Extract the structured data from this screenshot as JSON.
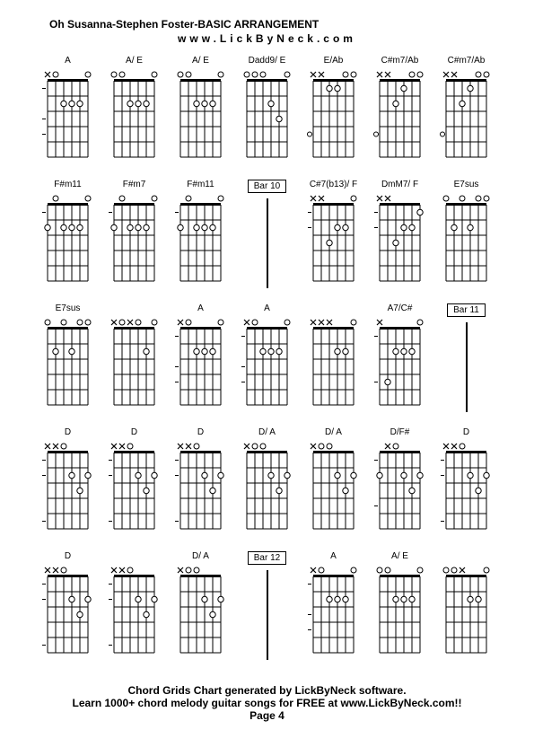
{
  "title": "Oh Susanna-Stephen Foster-BASIC ARRANGEMENT",
  "subtitle": "www.LickByNeck.com",
  "footer_line1": "Chord Grids Chart generated by LickByNeck software.",
  "footer_line2": "Learn 1000+ chord melody guitar songs for FREE at www.LickByNeck.com!!",
  "footer_line3": "Page 4",
  "colors": {
    "background": "#ffffff",
    "stroke": "#000000",
    "dot_fill": "#ffffff",
    "dot_stroke": "#000000"
  },
  "diagram": {
    "strings": 6,
    "frets": 5,
    "width": 46,
    "height": 88,
    "string_gap": 9,
    "fret_gap": 17,
    "dot_radius": 3.2,
    "marker_size": 7
  },
  "cells": [
    {
      "type": "chord",
      "label": "A",
      "markers": [
        "x",
        "o",
        null,
        null,
        null,
        "o"
      ],
      "dots": [
        [
          3,
          2
        ],
        [
          4,
          2
        ],
        [
          5,
          2
        ]
      ],
      "dashes": [
        0,
        2,
        3
      ]
    },
    {
      "type": "chord",
      "label": "A/ E",
      "markers": [
        "o",
        "o",
        null,
        null,
        null,
        "o"
      ],
      "dots": [
        [
          3,
          2
        ],
        [
          4,
          2
        ],
        [
          5,
          2
        ]
      ]
    },
    {
      "type": "chord",
      "label": "A/ E",
      "markers": [
        "o",
        "o",
        null,
        null,
        null,
        "o"
      ],
      "dots": [
        [
          3,
          2
        ],
        [
          4,
          2
        ],
        [
          5,
          2
        ]
      ]
    },
    {
      "type": "chord",
      "label": "Dadd9/ E",
      "markers": [
        "o",
        "o",
        "o",
        null,
        null,
        "o"
      ],
      "dots": [
        [
          4,
          2
        ],
        [
          5,
          3
        ]
      ]
    },
    {
      "type": "chord",
      "label": "E/Ab",
      "markers": [
        "x",
        "x",
        null,
        null,
        "o",
        "o"
      ],
      "dots": [
        [
          3,
          1
        ],
        [
          4,
          1
        ]
      ],
      "sideDot": 4
    },
    {
      "type": "chord",
      "label": "C#m7/Ab",
      "markers": [
        "x",
        "x",
        null,
        null,
        "o",
        "o"
      ],
      "dots": [
        [
          3,
          2
        ],
        [
          4,
          1
        ]
      ],
      "sideDot": 4
    },
    {
      "type": "chord",
      "label": "C#m7/Ab",
      "markers": [
        "x",
        "x",
        null,
        null,
        "o",
        "o"
      ],
      "dots": [
        [
          3,
          2
        ],
        [
          4,
          1
        ]
      ],
      "sideDot": 4
    },
    {
      "type": "chord",
      "label": "F#m11",
      "markers": [
        null,
        "o",
        null,
        null,
        null,
        "o"
      ],
      "dots": [
        [
          1,
          2
        ],
        [
          3,
          2
        ],
        [
          4,
          2
        ],
        [
          5,
          2
        ]
      ],
      "dashes": [
        0
      ]
    },
    {
      "type": "chord",
      "label": "F#m7",
      "markers": [
        null,
        "o",
        null,
        null,
        null,
        "o"
      ],
      "dots": [
        [
          1,
          2
        ],
        [
          3,
          2
        ],
        [
          4,
          2
        ],
        [
          5,
          2
        ]
      ],
      "dashes": [
        0
      ]
    },
    {
      "type": "chord",
      "label": "F#m11",
      "markers": [
        null,
        "o",
        null,
        null,
        null,
        "o"
      ],
      "dots": [
        [
          1,
          2
        ],
        [
          3,
          2
        ],
        [
          4,
          2
        ],
        [
          5,
          2
        ]
      ],
      "dashes": [
        0
      ]
    },
    {
      "type": "bar",
      "label": "Bar 10"
    },
    {
      "type": "chord",
      "label": "C#7(b13)/ F",
      "markers": [
        "x",
        "x",
        null,
        null,
        null,
        "o"
      ],
      "dots": [
        [
          3,
          3
        ],
        [
          4,
          2
        ],
        [
          5,
          2
        ]
      ],
      "dashes": [
        0,
        1
      ]
    },
    {
      "type": "chord",
      "label": "DmM7/ F",
      "markers": [
        "x",
        "x",
        null,
        null,
        null,
        null
      ],
      "dots": [
        [
          3,
          3
        ],
        [
          4,
          2
        ],
        [
          5,
          2
        ],
        [
          6,
          1
        ]
      ],
      "dashes": [
        0,
        1
      ]
    },
    {
      "type": "chord",
      "label": "E7sus",
      "markers": [
        "o",
        null,
        "o",
        null,
        "o",
        "o"
      ],
      "dots": [
        [
          2,
          2
        ],
        [
          4,
          2
        ]
      ]
    },
    {
      "type": "chord",
      "label": "E7sus",
      "markers": [
        "o",
        null,
        "o",
        null,
        "o",
        "o"
      ],
      "dots": [
        [
          2,
          2
        ],
        [
          4,
          2
        ]
      ]
    },
    {
      "type": "chord",
      "label": "",
      "markers": [
        "x",
        "o",
        "x",
        "o",
        null,
        "o"
      ],
      "dots": [
        [
          5,
          2
        ]
      ]
    },
    {
      "type": "chord",
      "label": "A",
      "markers": [
        "x",
        "o",
        null,
        null,
        null,
        "o"
      ],
      "dots": [
        [
          3,
          2
        ],
        [
          4,
          2
        ],
        [
          5,
          2
        ]
      ],
      "dashes": [
        0,
        2,
        3
      ]
    },
    {
      "type": "chord",
      "label": "A",
      "markers": [
        "x",
        "o",
        null,
        null,
        null,
        "o"
      ],
      "dots": [
        [
          3,
          2
        ],
        [
          4,
          2
        ],
        [
          5,
          2
        ]
      ],
      "dashes": [
        0,
        2,
        3
      ]
    },
    {
      "type": "chord",
      "label": "",
      "markers": [
        "x",
        "x",
        "x",
        null,
        null,
        "o"
      ],
      "dots": [
        [
          4,
          2
        ],
        [
          5,
          2
        ]
      ]
    },
    {
      "type": "chord",
      "label": "A7/C#",
      "markers": [
        "x",
        null,
        null,
        null,
        null,
        "o"
      ],
      "dots": [
        [
          2,
          4
        ],
        [
          3,
          2
        ],
        [
          4,
          2
        ],
        [
          5,
          2
        ]
      ],
      "dashes": [
        0,
        3
      ]
    },
    {
      "type": "bar",
      "label": "Bar 11"
    },
    {
      "type": "chord",
      "label": "D",
      "markers": [
        "x",
        "x",
        "o",
        null,
        null,
        null
      ],
      "dots": [
        [
          4,
          2
        ],
        [
          5,
          3
        ],
        [
          6,
          2
        ]
      ],
      "dashes": [
        0,
        1,
        4
      ]
    },
    {
      "type": "chord",
      "label": "D",
      "markers": [
        "x",
        "x",
        "o",
        null,
        null,
        null
      ],
      "dots": [
        [
          4,
          2
        ],
        [
          5,
          3
        ],
        [
          6,
          2
        ]
      ],
      "dashes": [
        0,
        1,
        4
      ]
    },
    {
      "type": "chord",
      "label": "D",
      "markers": [
        "x",
        "x",
        "o",
        null,
        null,
        null
      ],
      "dots": [
        [
          4,
          2
        ],
        [
          5,
          3
        ],
        [
          6,
          2
        ]
      ],
      "dashes": [
        0,
        1,
        4
      ]
    },
    {
      "type": "chord",
      "label": "D/ A",
      "markers": [
        "x",
        "o",
        "o",
        null,
        null,
        null
      ],
      "dots": [
        [
          4,
          2
        ],
        [
          5,
          3
        ],
        [
          6,
          2
        ]
      ]
    },
    {
      "type": "chord",
      "label": "D/ A",
      "markers": [
        "x",
        "o",
        "o",
        null,
        null,
        null
      ],
      "dots": [
        [
          4,
          2
        ],
        [
          5,
          3
        ],
        [
          6,
          2
        ]
      ]
    },
    {
      "type": "chord",
      "label": "D/F#",
      "markers": [
        null,
        "x",
        "o",
        null,
        null,
        null
      ],
      "dots": [
        [
          1,
          2
        ],
        [
          4,
          2
        ],
        [
          5,
          3
        ],
        [
          6,
          2
        ]
      ],
      "dashes": [
        0,
        3
      ]
    },
    {
      "type": "chord",
      "label": "D",
      "markers": [
        "x",
        "x",
        "o",
        null,
        null,
        null
      ],
      "dots": [
        [
          4,
          2
        ],
        [
          5,
          3
        ],
        [
          6,
          2
        ]
      ],
      "dashes": [
        0,
        1,
        4
      ]
    },
    {
      "type": "chord",
      "label": "D",
      "markers": [
        "x",
        "x",
        "o",
        null,
        null,
        null
      ],
      "dots": [
        [
          4,
          2
        ],
        [
          5,
          3
        ],
        [
          6,
          2
        ]
      ],
      "dashes": [
        0,
        1,
        4
      ]
    },
    {
      "type": "chord",
      "label": "",
      "markers": [
        "x",
        "x",
        "o",
        null,
        null,
        null
      ],
      "dots": [
        [
          4,
          2
        ],
        [
          5,
          3
        ],
        [
          6,
          2
        ]
      ],
      "dashes": [
        0,
        1,
        4
      ]
    },
    {
      "type": "chord",
      "label": "D/ A",
      "markers": [
        "x",
        "o",
        "o",
        null,
        null,
        null
      ],
      "dots": [
        [
          4,
          2
        ],
        [
          5,
          3
        ],
        [
          6,
          2
        ]
      ]
    },
    {
      "type": "bar",
      "label": "Bar 12"
    },
    {
      "type": "chord",
      "label": "A",
      "markers": [
        "x",
        "o",
        null,
        null,
        null,
        "o"
      ],
      "dots": [
        [
          3,
          2
        ],
        [
          4,
          2
        ],
        [
          5,
          2
        ]
      ],
      "dashes": [
        0,
        2,
        3
      ]
    },
    {
      "type": "chord",
      "label": "A/ E",
      "markers": [
        "o",
        "o",
        null,
        null,
        null,
        "o"
      ],
      "dots": [
        [
          3,
          2
        ],
        [
          4,
          2
        ],
        [
          5,
          2
        ]
      ]
    },
    {
      "type": "chord",
      "label": "",
      "markers": [
        "o",
        "o",
        "x",
        null,
        null,
        "o"
      ],
      "dots": [
        [
          4,
          2
        ],
        [
          5,
          2
        ]
      ]
    }
  ]
}
